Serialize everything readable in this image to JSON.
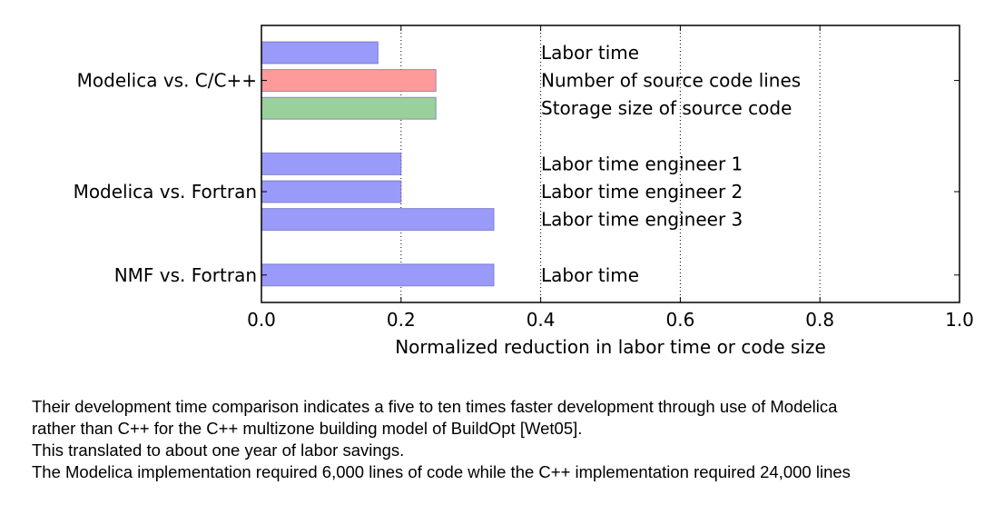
{
  "chart_data": {
    "type": "bar",
    "orientation": "horizontal",
    "xlabel": "Normalized reduction in labor time or code size",
    "xlim": [
      0.0,
      1.0
    ],
    "xticks": [
      "0.0",
      "0.2",
      "0.4",
      "0.6",
      "0.8",
      "1.0"
    ],
    "grid": "vertical dotted",
    "groups": [
      {
        "name": "Modelica vs. C/C++",
        "bars": [
          {
            "label": "Labor time",
            "value": 0.167,
            "color": "#9a9afa"
          },
          {
            "label": "Number of source code lines",
            "value": 0.25,
            "color": "#ff9a9a"
          },
          {
            "label": "Storage size of source code",
            "value": 0.25,
            "color": "#9ad09a"
          }
        ]
      },
      {
        "name": "Modelica vs. Fortran",
        "bars": [
          {
            "label": "Labor time engineer 1",
            "value": 0.2,
            "color": "#9a9afa"
          },
          {
            "label": "Labor time engineer 2",
            "value": 0.2,
            "color": "#9a9afa"
          },
          {
            "label": "Labor time engineer 3",
            "value": 0.333,
            "color": "#9a9afa"
          }
        ]
      },
      {
        "name": "NMF vs. Fortran",
        "bars": [
          {
            "label": "Labor time",
            "value": 0.333,
            "color": "#9a9afa"
          }
        ]
      }
    ]
  },
  "caption": {
    "lines": [
      "Their development time comparison indicates a five to ten times faster development through use of Modelica",
      "rather than C++ for the C++ multizone building model of BuildOpt [Wet05].",
      "This translated to about one year of labor savings.",
      "The Modelica implementation required 6,000 lines of code while the C++ implementation required 24,000 lines"
    ]
  }
}
